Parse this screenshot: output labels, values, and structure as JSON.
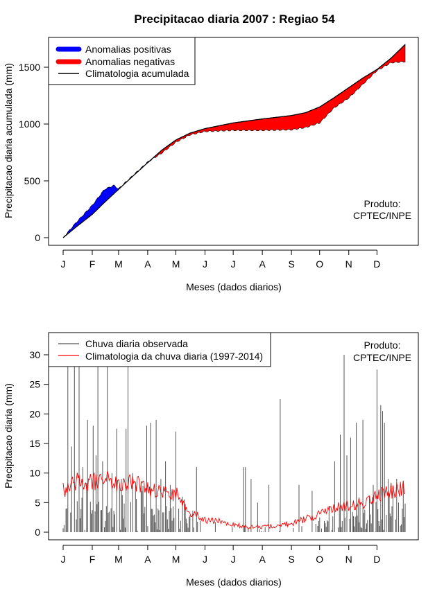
{
  "page": {
    "title": "Precipitacao diaria 2007 : Regiao 54"
  },
  "colors": {
    "positive": "#0000ff",
    "negative": "#ff0000",
    "observed": "#555555",
    "climatology": "#ff0000",
    "frame": "#000000"
  },
  "chart_data": [
    {
      "type": "area",
      "id": "cumulative",
      "title": "Precipitacao diaria 2007 : Regiao 54",
      "xlabel": "Meses (dados diarios)",
      "ylabel": "Precipitacao diaria acumulada (mm)",
      "xlim": [
        1,
        365
      ],
      "ylim": [
        0,
        1700
      ],
      "yticks": [
        0,
        500,
        1000,
        1500
      ],
      "month_labels": [
        "J",
        "F",
        "M",
        "A",
        "M",
        "J",
        "J",
        "A",
        "S",
        "O",
        "N",
        "D"
      ],
      "month_starts": [
        1,
        32,
        60,
        91,
        121,
        152,
        182,
        213,
        244,
        274,
        305,
        335
      ],
      "legend": {
        "placement": "top-left",
        "items": [
          "Anomalias positivas",
          "Anomalias negativas",
          "Climatologia acumulada"
        ]
      },
      "note": [
        "Produto:",
        "CPTEC/INPE"
      ],
      "climatology_knots": {
        "day": [
          1,
          15,
          32,
          45,
          60,
          75,
          91,
          106,
          121,
          136,
          152,
          182,
          213,
          244,
          259,
          274,
          289,
          305,
          320,
          335,
          350,
          365
        ],
        "value": [
          0,
          95,
          205,
          310,
          425,
          540,
          660,
          770,
          860,
          920,
          960,
          1010,
          1045,
          1075,
          1100,
          1150,
          1230,
          1320,
          1405,
          1480,
          1580,
          1700
        ]
      },
      "observed_knots": {
        "day": [
          1,
          15,
          32,
          45,
          55,
          60,
          75,
          91,
          106,
          121,
          136,
          152,
          182,
          213,
          244,
          259,
          274,
          289,
          305,
          320,
          335,
          350,
          365
        ],
        "value": [
          0,
          135,
          285,
          425,
          460,
          430,
          545,
          665,
          745,
          840,
          905,
          935,
          945,
          945,
          950,
          970,
          1010,
          1140,
          1230,
          1350,
          1470,
          1540,
          1550
        ]
      }
    },
    {
      "type": "bar",
      "id": "daily",
      "xlabel": "Meses (dados diarios)",
      "ylabel": "Precipitacao diaria (mm)",
      "xlim": [
        1,
        365
      ],
      "ylim": [
        0,
        30
      ],
      "yticks": [
        0,
        5,
        10,
        15,
        20,
        25,
        30
      ],
      "month_labels": [
        "J",
        "F",
        "M",
        "A",
        "M",
        "J",
        "J",
        "A",
        "S",
        "O",
        "N",
        "D"
      ],
      "month_starts": [
        1,
        32,
        60,
        91,
        121,
        152,
        182,
        213,
        244,
        274,
        305,
        335
      ],
      "legend": {
        "placement": "top-left",
        "items": [
          "Chuva diaria observada",
          "Climatologia da chuva diaria (1997-2014)"
        ]
      },
      "note": [
        "Produto:",
        "CPTEC/INPE"
      ],
      "climatology_knots": {
        "day": [
          1,
          15,
          32,
          45,
          60,
          75,
          91,
          106,
          121,
          136,
          152,
          167,
          182,
          197,
          213,
          228,
          244,
          259,
          274,
          289,
          305,
          320,
          335,
          350,
          365
        ],
        "value": [
          7,
          8.5,
          8.5,
          9,
          8,
          8.5,
          7.5,
          6.5,
          6.5,
          3.5,
          2,
          1.8,
          1.2,
          0.8,
          0.8,
          1,
          1.5,
          2.2,
          3,
          4,
          4.5,
          5,
          6,
          7,
          7.5
        ]
      },
      "observed_peaks": {
        "day": [
          4,
          6,
          10,
          13,
          18,
          22,
          27,
          33,
          36,
          38,
          43,
          48,
          53,
          58,
          63,
          68,
          70,
          75,
          78,
          85,
          90,
          94,
          100,
          105,
          110,
          115,
          121,
          128,
          143,
          193,
          195,
          201,
          208,
          220,
          232,
          252,
          266,
          290,
          296,
          300,
          303,
          307,
          313,
          320,
          327,
          331,
          335,
          339,
          341,
          343,
          347,
          352,
          358,
          362
        ],
        "value": [
          4,
          28,
          14.5,
          28,
          28,
          11,
          19,
          18,
          13,
          28,
          12,
          28,
          10,
          17.5,
          9,
          17.5,
          28,
          10,
          8,
          7,
          18,
          18.5,
          19,
          9,
          12,
          8,
          17,
          6,
          11,
          11,
          11,
          9,
          5,
          8,
          22.5,
          8,
          7,
          12,
          16.5,
          30,
          13,
          16,
          18.5,
          19,
          6,
          8,
          27.5,
          21.5,
          20.5,
          18.5,
          9,
          7,
          5,
          4
        ]
      }
    }
  ]
}
